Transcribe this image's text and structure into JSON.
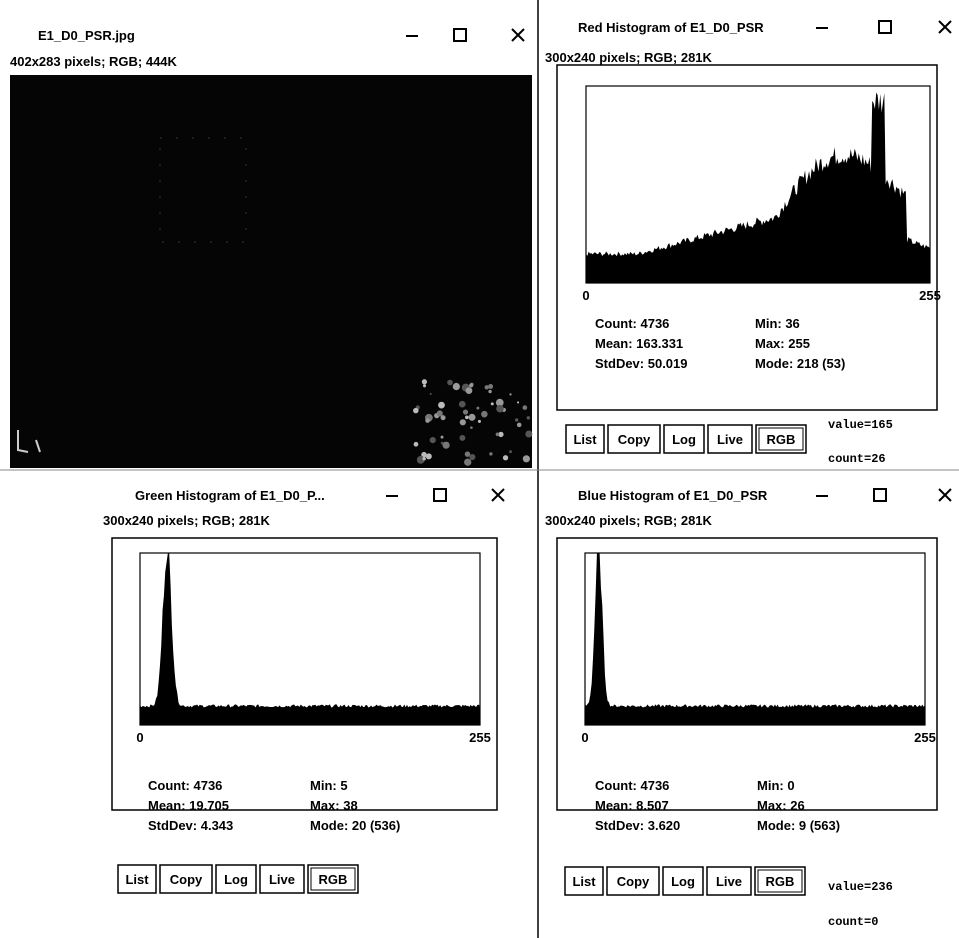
{
  "image_window": {
    "title": "E1_D0_PSR.jpg",
    "info": "402x283 pixels; RGB; 444K"
  },
  "histograms": [
    {
      "title": "Red Histogram of E1_D0_PSR",
      "info": "300x240 pixels; RGB; 281K",
      "axis_min": "0",
      "axis_max": "255",
      "stats": [
        "Count: 4736",
        "Mean: 163.331",
        "StdDev: 50.019",
        "Min: 36",
        "Max: 255",
        "Mode: 218 (53)"
      ],
      "buttons": [
        "List",
        "Copy",
        "Log",
        "Live",
        "RGB"
      ],
      "value": "value=165",
      "count": "count=26"
    },
    {
      "title": "Green Histogram of E1_D0_P...",
      "info": "300x240 pixels; RGB; 281K",
      "axis_min": "0",
      "axis_max": "255",
      "stats": [
        "Count: 4736",
        "Mean: 19.705",
        "StdDev: 4.343",
        "Min: 5",
        "Max: 38",
        "Mode: 20 (536)"
      ],
      "buttons": [
        "List",
        "Copy",
        "Log",
        "Live",
        "RGB"
      ]
    },
    {
      "title": "Blue Histogram of E1_D0_PSR",
      "info": "300x240 pixels; RGB; 281K",
      "axis_min": "0",
      "axis_max": "255",
      "stats": [
        "Count: 4736",
        "Mean: 8.507",
        "StdDev: 3.620",
        "Min: 0",
        "Max: 26",
        "Mode: 9 (563)"
      ],
      "buttons": [
        "List",
        "Copy",
        "Log",
        "Live",
        "RGB"
      ],
      "value": "value=236",
      "count": "count=0"
    }
  ]
}
